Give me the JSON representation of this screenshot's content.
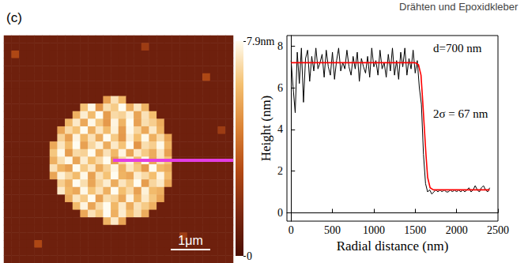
{
  "header": "Drähten und Epoxidkleber",
  "panel_label": "(c)",
  "chart_data": [
    {
      "type": "heatmap",
      "tick_labels": false,
      "xlim": [
        0,
        5.8
      ],
      "scale_bar": {
        "length": 1,
        "label": "1μm"
      },
      "colorbar": {
        "range": [
          0,
          7.9
        ],
        "ticks": [
          0,
          {
            "value": 7.9,
            "label": "7.9nm"
          }
        ],
        "colors": [
          "#4a0e02",
          "#7d2812",
          "#b44a14",
          "#dc8436",
          "#f4c070",
          "#fffcf0"
        ]
      },
      "values": [
        [
          1.1,
          1.1,
          1.1,
          1.1,
          1.1,
          1.1,
          1.1,
          1.1,
          1.1,
          1.1,
          1.1,
          1.1,
          1.1,
          1.1,
          1.1,
          1.1,
          1.1,
          1.1,
          1.1,
          1.1,
          1.1,
          1.1,
          1.1,
          1.1,
          1.1,
          1.1,
          1.1,
          1.1,
          1.1,
          1.1
        ],
        [
          1.1,
          1.1,
          1.1,
          1.1,
          1.1,
          1.1,
          1.1,
          1.1,
          1.1,
          1.1,
          1.1,
          1.1,
          1.1,
          1.1,
          1.1,
          1.1,
          1.1,
          1.1,
          2.5,
          1.1,
          1.1,
          1.1,
          1.1,
          1.1,
          1.1,
          1.1,
          1.1,
          1.1,
          1.1,
          1.1
        ],
        [
          1.1,
          3,
          1.1,
          1.1,
          1.1,
          1.1,
          1.1,
          1.1,
          1.1,
          1.1,
          1.1,
          1.1,
          1.1,
          1.1,
          1.1,
          1.1,
          1.1,
          1.1,
          1.1,
          1.1,
          1.1,
          1.1,
          1.1,
          1.1,
          1.1,
          1.1,
          1.1,
          1.1,
          1.1,
          1.1
        ],
        [
          1.1,
          1.1,
          1.1,
          1.1,
          1.1,
          1.1,
          1.1,
          1.1,
          1.1,
          1.1,
          1.1,
          1.1,
          1.1,
          1.1,
          1.1,
          1.1,
          1.1,
          1.1,
          1.1,
          1.1,
          1.1,
          1.1,
          1.1,
          1.1,
          1.1,
          1.1,
          1.1,
          1.1,
          1.1,
          1.1
        ],
        [
          1.1,
          1.1,
          1.1,
          1.1,
          1.1,
          1.1,
          1.1,
          1.1,
          1.1,
          1.1,
          1.1,
          1.1,
          1.1,
          1.1,
          1.1,
          1.1,
          1.1,
          1.1,
          1.1,
          1.1,
          1.1,
          1.1,
          1.1,
          1.1,
          1.1,
          1.1,
          1.1,
          1.1,
          1.1,
          1.1
        ],
        [
          1.1,
          1.1,
          1.1,
          1.1,
          1.1,
          1.1,
          1.1,
          1.1,
          1.1,
          1.1,
          1.1,
          1.1,
          1.1,
          1.1,
          1.1,
          1.1,
          1.1,
          1.1,
          1.1,
          1.1,
          1.1,
          1.1,
          1.1,
          1.1,
          1.1,
          1.1,
          3,
          1.1,
          1.1,
          1.1
        ],
        [
          1.1,
          1.1,
          1.1,
          1.1,
          1.1,
          1.1,
          1.1,
          1.1,
          1.1,
          1.1,
          1.1,
          1.1,
          1.1,
          1.1,
          1.1,
          1.1,
          1.1,
          1.1,
          1.1,
          1.1,
          1.1,
          1.1,
          1.1,
          1.1,
          1.1,
          1.1,
          1.1,
          1.1,
          1.1,
          1.1
        ],
        [
          1.1,
          1.1,
          1.1,
          1.1,
          1.1,
          1.1,
          1.1,
          1.1,
          1.1,
          1.1,
          1.1,
          1.1,
          1.1,
          1.1,
          1.1,
          1.1,
          1.1,
          1.1,
          1.1,
          1.1,
          1.1,
          1.1,
          1.1,
          1.1,
          1.1,
          1.1,
          1.1,
          1.1,
          1.1,
          1.1
        ],
        [
          1.1,
          1.1,
          1.1,
          1.1,
          1.1,
          1.1,
          1.1,
          1.1,
          1.1,
          1.1,
          1.1,
          1.1,
          1.1,
          5.5,
          7.2,
          6.1,
          1.1,
          1.1,
          1.1,
          1.1,
          1.1,
          1.1,
          1.1,
          1.1,
          1.1,
          1.1,
          1.1,
          1.1,
          1.1,
          1.1
        ],
        [
          1.1,
          1.1,
          1.1,
          1.1,
          1.1,
          1.1,
          1.1,
          1.1,
          1.1,
          1.1,
          6.4,
          7.8,
          5.2,
          7.1,
          6.6,
          7.9,
          5.8,
          7.3,
          6.0,
          1.1,
          1.1,
          1.1,
          1.1,
          1.1,
          1.1,
          1.1,
          1.1,
          1.1,
          1.1,
          1.1
        ],
        [
          1.1,
          1.1,
          1.1,
          1.1,
          1.1,
          1.1,
          1.1,
          1.1,
          1.1,
          5.9,
          7.5,
          6.2,
          7.9,
          5.4,
          7.0,
          6.8,
          7.6,
          5.6,
          7.2,
          6.3,
          1.1,
          1.1,
          1.1,
          1.1,
          1.1,
          1.1,
          1.1,
          1.1,
          1.1,
          1.1
        ],
        [
          1.1,
          1.1,
          1.1,
          1.1,
          1.1,
          1.1,
          1.1,
          1.1,
          6.1,
          7.4,
          5.7,
          7.8,
          6.5,
          5.3,
          7.7,
          6.0,
          7.9,
          5.5,
          7.1,
          6.7,
          5.8,
          1.1,
          1.1,
          1.1,
          1.1,
          1.1,
          1.1,
          1.1,
          1.1,
          1.1
        ],
        [
          1.1,
          1.1,
          1.1,
          1.1,
          1.1,
          1.1,
          1.1,
          5.6,
          7.0,
          6.4,
          7.9,
          5.9,
          7.3,
          6.2,
          7.6,
          5.4,
          7.8,
          6.9,
          5.7,
          7.4,
          6.0,
          1.1,
          1.1,
          1.1,
          1.1,
          1.1,
          1.1,
          1.1,
          2.5,
          1.1
        ],
        [
          1.1,
          1.1,
          1.1,
          1.1,
          1.1,
          1.1,
          1.1,
          6.8,
          5.5,
          7.7,
          6.1,
          7.2,
          5.8,
          7.9,
          6.6,
          5.3,
          7.5,
          6.3,
          7.8,
          5.9,
          7.0,
          5.6,
          1.1,
          1.1,
          1.1,
          1.1,
          1.1,
          1.1,
          1.1,
          1.1
        ],
        [
          1.1,
          1.1,
          1.1,
          1.1,
          1.1,
          1.1,
          5.7,
          7.3,
          6.2,
          7.9,
          5.5,
          6.9,
          7.6,
          5.8,
          7.4,
          6.4,
          7.9,
          5.2,
          7.1,
          6.7,
          7.8,
          6.0,
          1.1,
          1.1,
          1.1,
          1.1,
          1.1,
          1.1,
          1.1,
          1.1
        ],
        [
          1.1,
          1.1,
          1.1,
          1.1,
          1.1,
          1.1,
          6.5,
          7.8,
          5.4,
          7.0,
          6.8,
          7.9,
          5.9,
          7.2,
          6.1,
          7.7,
          5.6,
          7.4,
          6.6,
          5.8,
          7.3,
          5.5,
          1.1,
          1.1,
          1.1,
          1.1,
          1.1,
          1.1,
          1.1,
          1.1
        ],
        [
          1.1,
          1.1,
          1.1,
          1.1,
          1.1,
          1.1,
          5.9,
          7.1,
          7.8,
          5.6,
          7.5,
          6.3,
          7.0,
          7.9,
          5.4,
          6.9,
          7.6,
          6.2,
          7.8,
          5.7,
          7.2,
          6.4,
          1.1,
          1.1,
          1.1,
          1.1,
          1.1,
          1.1,
          1.1,
          1.1
        ],
        [
          1.1,
          1.1,
          1.1,
          1.1,
          1.1,
          1.1,
          7.2,
          6.0,
          5.5,
          7.9,
          6.6,
          7.4,
          5.8,
          6.8,
          7.7,
          5.9,
          7.3,
          6.5,
          5.3,
          7.9,
          6.1,
          5.8,
          1.1,
          1.1,
          1.1,
          1.1,
          1.1,
          1.1,
          1.1,
          1.1
        ],
        [
          1.1,
          1.1,
          1.1,
          1.1,
          1.1,
          1.1,
          5.6,
          7.6,
          6.9,
          6.2,
          7.8,
          5.5,
          7.2,
          6.4,
          7.9,
          6.0,
          5.7,
          7.5,
          7.0,
          6.3,
          7.7,
          6.2,
          1.1,
          1.1,
          1.1,
          1.1,
          1.1,
          1.1,
          1.1,
          1.1
        ],
        [
          1.1,
          1.1,
          1.1,
          1.1,
          1.1,
          1.1,
          1.1,
          6.7,
          5.9,
          7.9,
          7.1,
          5.6,
          6.8,
          7.5,
          5.8,
          7.3,
          6.6,
          7.9,
          5.4,
          6.9,
          7.4,
          5.7,
          1.1,
          1.1,
          1.1,
          1.1,
          1.1,
          1.1,
          1.1,
          1.1
        ],
        [
          1.1,
          1.1,
          1.1,
          1.1,
          1.1,
          1.1,
          1.1,
          7.4,
          6.1,
          5.7,
          7.8,
          6.4,
          7.2,
          5.9,
          7.9,
          6.3,
          7.0,
          5.5,
          7.6,
          6.2,
          5.9,
          1.1,
          1.1,
          1.1,
          1.1,
          1.1,
          1.1,
          1.1,
          1.1,
          1.1
        ],
        [
          1.1,
          1.1,
          1.1,
          1.1,
          1.1,
          1.1,
          1.1,
          1.1,
          5.8,
          7.3,
          6.6,
          7.9,
          5.5,
          7.1,
          6.8,
          5.7,
          7.7,
          6.0,
          7.4,
          6.5,
          5.6,
          1.1,
          1.1,
          1.1,
          1.1,
          1.1,
          1.1,
          1.1,
          1.1,
          1.1
        ],
        [
          1.1,
          1.1,
          1.1,
          1.1,
          1.1,
          1.1,
          1.1,
          1.1,
          1.1,
          6.2,
          7.7,
          5.6,
          7.0,
          7.9,
          6.1,
          7.4,
          5.8,
          7.2,
          6.6,
          5.9,
          1.1,
          1.1,
          1.1,
          1.1,
          1.1,
          1.1,
          1.1,
          1.1,
          1.1,
          1.1
        ],
        [
          1.1,
          1.1,
          1.1,
          1.1,
          1.1,
          1.1,
          1.1,
          1.1,
          1.1,
          1.1,
          5.7,
          7.2,
          6.5,
          7.9,
          5.9,
          7.5,
          6.3,
          7.1,
          5.8,
          1.1,
          1.1,
          1.1,
          1.1,
          1.1,
          1.1,
          1.1,
          1.1,
          1.1,
          1.1,
          1.1
        ],
        [
          1.1,
          1.1,
          1.1,
          1.1,
          1.1,
          1.1,
          1.1,
          1.1,
          1.1,
          1.1,
          1.1,
          1.1,
          1.1,
          6.0,
          7.4,
          5.6,
          1.1,
          1.1,
          1.1,
          1.1,
          1.1,
          1.1,
          1.1,
          1.1,
          1.1,
          1.1,
          1.1,
          1.1,
          1.1,
          1.1
        ],
        [
          1.1,
          1.1,
          1.1,
          1.1,
          1.1,
          1.1,
          1.1,
          1.1,
          1.1,
          1.1,
          1.1,
          1.1,
          1.1,
          1.1,
          1.1,
          1.1,
          1.1,
          1.1,
          1.1,
          1.1,
          1.1,
          1.1,
          1.1,
          1.1,
          1.1,
          1.1,
          1.1,
          1.1,
          1.1,
          1.1
        ],
        [
          1.1,
          1.1,
          1.1,
          1.1,
          1.1,
          1.1,
          1.1,
          1.1,
          1.1,
          1.1,
          1.1,
          1.1,
          1.1,
          1.1,
          1.1,
          1.1,
          1.1,
          1.1,
          1.1,
          1.1,
          1.1,
          1.1,
          1.1,
          2.5,
          1.1,
          1.1,
          1.1,
          1.1,
          1.1,
          1.1
        ],
        [
          1.1,
          1.1,
          1.1,
          1.1,
          3,
          1.1,
          1.1,
          1.1,
          1.1,
          1.1,
          1.1,
          1.1,
          1.1,
          1.1,
          1.1,
          1.1,
          1.1,
          1.1,
          1.1,
          1.1,
          1.1,
          1.1,
          1.1,
          1.1,
          1.1,
          1.1,
          1.1,
          1.1,
          1.1,
          1.1
        ],
        [
          1.1,
          1.1,
          1.1,
          1.1,
          1.1,
          1.1,
          1.1,
          1.1,
          1.1,
          1.1,
          1.1,
          1.1,
          1.1,
          1.1,
          1.1,
          1.1,
          1.1,
          1.1,
          1.1,
          1.1,
          1.1,
          1.1,
          1.1,
          1.1,
          1.1,
          1.1,
          1.1,
          1.1,
          1.1,
          1.1
        ],
        [
          1.1,
          1.1,
          1.1,
          1.1,
          1.1,
          1.1,
          1.1,
          1.1,
          1.1,
          1.1,
          1.1,
          1.1,
          1.1,
          1.1,
          1.1,
          1.1,
          1.1,
          1.1,
          1.1,
          1.1,
          1.1,
          1.1,
          1.1,
          1.1,
          1.1,
          1.1,
          1.1,
          1.1,
          1.1,
          1.1
        ]
      ]
    },
    {
      "type": "line",
      "x_label": "Radial distance (nm)",
      "y_label": "Height (nm)",
      "xlim": [
        -50,
        2500
      ],
      "xticks": [
        0,
        500,
        1000,
        1500,
        2000,
        2500
      ],
      "ylim": [
        -0.4,
        8.5
      ],
      "yticks": [
        0,
        2,
        4,
        6,
        8
      ],
      "grid": false,
      "annotations": [
        "d=700 nm",
        "2σ = 67 nm"
      ],
      "series": [
        {
          "color": "#000000",
          "x": [
            0,
            25,
            50,
            75,
            100,
            125,
            150,
            175,
            200,
            225,
            250,
            275,
            300,
            325,
            350,
            375,
            400,
            425,
            450,
            475,
            500,
            525,
            550,
            575,
            600,
            625,
            650,
            675,
            700,
            725,
            750,
            775,
            800,
            825,
            850,
            875,
            900,
            925,
            950,
            975,
            1000,
            1025,
            1050,
            1075,
            1100,
            1125,
            1150,
            1175,
            1200,
            1225,
            1250,
            1275,
            1300,
            1325,
            1350,
            1375,
            1400,
            1425,
            1450,
            1475,
            1500,
            1525,
            1550,
            1575,
            1600,
            1625,
            1650,
            1675,
            1700,
            1725,
            1750,
            1775,
            1800,
            1825,
            1850,
            1875,
            1900,
            1925,
            1950,
            1975,
            2000,
            2025,
            2050,
            2075,
            2100,
            2125,
            2150,
            2175,
            2200,
            2225,
            2250,
            2275,
            2300,
            2325,
            2350,
            2375,
            2400
          ],
          "values": [
            7.3,
            6.0,
            4.8,
            7.7,
            6.2,
            7.9,
            5.3,
            7.4,
            7.8,
            6.3,
            7.5,
            6.8,
            7.9,
            6.9,
            7.2,
            7.6,
            6.5,
            7.8,
            7.0,
            6.6,
            7.7,
            6.4,
            7.3,
            7.9,
            6.8,
            7.2,
            6.9,
            7.8,
            7.0,
            6.6,
            7.5,
            6.9,
            7.7,
            6.3,
            7.4,
            7.0,
            6.7,
            7.5,
            6.5,
            7.9,
            7.0,
            7.3,
            6.6,
            7.8,
            6.9,
            7.2,
            6.5,
            7.6,
            6.8,
            7.9,
            6.6,
            7.3,
            6.4,
            7.7,
            7.0,
            7.9,
            6.6,
            7.4,
            6.9,
            7.8,
            6.7,
            7.3,
            6.0,
            5.2,
            2.8,
            1.4,
            1.0,
            1.1,
            0.9,
            1.0,
            1.1,
            1.0,
            1.1,
            1.0,
            1.1,
            1.0,
            1.0,
            1.1,
            1.0,
            1.1,
            1.0,
            1.1,
            1.0,
            1.1,
            1.0,
            1.1,
            1.2,
            1.0,
            1.1,
            1.3,
            1.1,
            1.0,
            1.2,
            1.3,
            1.1,
            1.0,
            1.2
          ]
        },
        {
          "color": "#ff0000",
          "x": [
            0,
            1500,
            1540,
            1570,
            1590,
            1610,
            1630,
            1650,
            1680,
            1720,
            2400
          ],
          "values": [
            7.2,
            7.2,
            7.1,
            6.6,
            5.4,
            4.1,
            2.8,
            1.7,
            1.2,
            1.1,
            1.1
          ]
        }
      ]
    }
  ]
}
